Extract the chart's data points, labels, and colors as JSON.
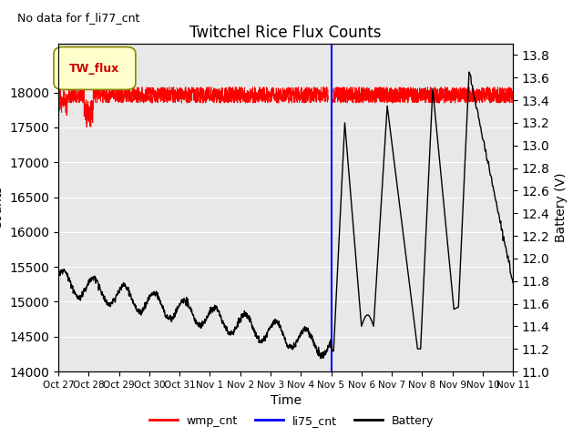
{
  "title": "Twitchel Rice Flux Counts",
  "no_data_text": "No data for f_li77_cnt",
  "xlabel": "Time",
  "ylabel_left": "Counts",
  "ylabel_right": "Battery (V)",
  "ylim_left": [
    14000,
    18700
  ],
  "ylim_right": [
    11.0,
    13.9
  ],
  "yticks_left": [
    14000,
    14500,
    15000,
    15500,
    16000,
    16500,
    17000,
    17500,
    18000
  ],
  "yticks_right": [
    11.0,
    11.2,
    11.4,
    11.6,
    11.8,
    12.0,
    12.2,
    12.4,
    12.6,
    12.8,
    13.0,
    13.2,
    13.4,
    13.6,
    13.8
  ],
  "xtick_labels": [
    "Oct 27",
    "Oct 28",
    "Oct 29",
    "Oct 30",
    "Oct 31",
    "Nov 1",
    "Nov 2",
    "Nov 3",
    "Nov 4",
    "Nov 5",
    "Nov 6",
    "Nov 7",
    "Nov 8",
    "Nov 9",
    "Nov 10",
    "Nov 11"
  ],
  "wmp_color": "#ff0000",
  "li75_color": "#0000ff",
  "battery_color": "#000000",
  "bg_color": "#e8e8e8",
  "legend_box_color": "#ffffcc",
  "legend_box_text": "TW_flux",
  "wmp_label": "wmp_cnt",
  "li75_label": "li75_cnt",
  "battery_label": "Battery"
}
